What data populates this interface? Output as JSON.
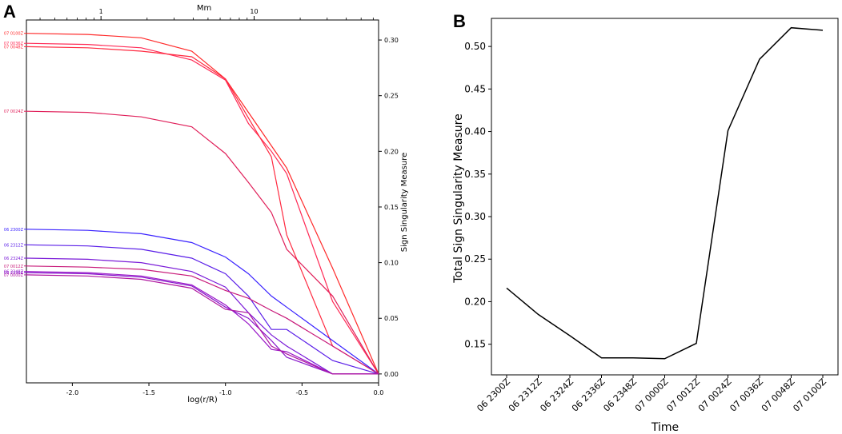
{
  "panel_labels": {
    "a": "A",
    "b": "B"
  },
  "chart_data": [
    {
      "type": "line",
      "panel": "A",
      "title": "",
      "xlabel": "log(r/R)",
      "ylabel": "Sign Singularity Measure",
      "secondary_xlabel": "Mm",
      "xlim": [
        -2.3,
        0.0
      ],
      "ylim": [
        -0.008,
        0.318
      ],
      "xticks": [
        -2.0,
        -1.5,
        -1.0,
        -0.5,
        0.0
      ],
      "xtick_labels": [
        "-2.0",
        "-1.5",
        "-1.0",
        "-0.5",
        "0.0"
      ],
      "yticks": [
        0.0,
        0.05,
        0.1,
        0.15,
        0.2,
        0.25,
        0.3
      ],
      "ytick_labels": [
        "0.00",
        "0.05",
        "0.10",
        "0.15",
        "0.20",
        "0.25",
        "0.30"
      ],
      "top_ticks": [
        1,
        10
      ],
      "top_tick_labels": [
        "1",
        "10"
      ],
      "y_axis_side": "right",
      "series_label_side": "left",
      "x": [
        -2.3,
        -1.9,
        -1.55,
        -1.22,
        -1.0,
        -0.85,
        -0.7,
        -0.6,
        -0.3,
        0.0
      ],
      "series": [
        {
          "name": "07 0100Z",
          "color": "#ff2a2a",
          "values": [
            0.306,
            0.305,
            0.302,
            0.29,
            0.265,
            0.235,
            0.205,
            0.185,
            0.095,
            0.0
          ]
        },
        {
          "name": "07 0036Z",
          "color": "#ff2a55",
          "values": [
            0.297,
            0.296,
            0.293,
            0.282,
            0.264,
            0.225,
            0.2,
            0.18,
            0.065,
            0.0
          ]
        },
        {
          "name": "07 0048Z",
          "color": "#ff2a40",
          "values": [
            0.294,
            0.293,
            0.29,
            0.285,
            0.265,
            0.23,
            0.195,
            0.125,
            0.025,
            0.0
          ]
        },
        {
          "name": "07 0024Z",
          "color": "#e0205a",
          "values": [
            0.236,
            0.235,
            0.231,
            0.222,
            0.198,
            0.172,
            0.145,
            0.112,
            0.07,
            0.0
          ]
        },
        {
          "name": "06 2300Z",
          "color": "#3a22ff",
          "values": [
            0.13,
            0.129,
            0.126,
            0.118,
            0.105,
            0.09,
            0.07,
            0.06,
            0.03,
            0.0
          ]
        },
        {
          "name": "06 2312Z",
          "color": "#5a1ee8",
          "values": [
            0.116,
            0.115,
            0.112,
            0.104,
            0.09,
            0.07,
            0.04,
            0.04,
            0.012,
            0.0
          ]
        },
        {
          "name": "06 2324Z",
          "color": "#7a1ad8",
          "values": [
            0.104,
            0.103,
            0.1,
            0.092,
            0.078,
            0.055,
            0.035,
            0.025,
            0.0,
            0.0
          ]
        },
        {
          "name": "07 0012Z",
          "color": "#c81a7a",
          "values": [
            0.097,
            0.096,
            0.094,
            0.088,
            0.075,
            0.068,
            0.057,
            0.05,
            0.025,
            0.0
          ]
        },
        {
          "name": "06 2348Z",
          "color": "#9a18c8",
          "values": [
            0.092,
            0.091,
            0.088,
            0.08,
            0.062,
            0.045,
            0.022,
            0.02,
            0.0,
            0.0
          ]
        },
        {
          "name": "06 2336Z",
          "color": "#8818cc",
          "values": [
            0.091,
            0.09,
            0.087,
            0.079,
            0.06,
            0.05,
            0.03,
            0.015,
            0.0,
            0.0
          ]
        },
        {
          "name": "07 0000Z",
          "color": "#b01aa0",
          "values": [
            0.089,
            0.088,
            0.085,
            0.077,
            0.058,
            0.055,
            0.025,
            0.018,
            0.0,
            0.0
          ]
        }
      ]
    },
    {
      "type": "line",
      "panel": "B",
      "title": "",
      "xlabel": "Time",
      "ylabel": "Total Sign Singularity Measure",
      "categories": [
        "06 2300Z",
        "06 2312Z",
        "06 2324Z",
        "06 2336Z",
        "06 2348Z",
        "07 0000Z",
        "07 0012Z",
        "07 0024Z",
        "07 0036Z",
        "07 0048Z",
        "07 0100Z"
      ],
      "values": [
        0.216,
        0.185,
        0.16,
        0.134,
        0.134,
        0.133,
        0.151,
        0.401,
        0.485,
        0.522,
        0.519
      ],
      "ylim": [
        0.114,
        0.533
      ],
      "yticks": [
        0.15,
        0.2,
        0.25,
        0.3,
        0.35,
        0.4,
        0.45,
        0.5
      ],
      "ytick_labels": [
        "0.15",
        "0.20",
        "0.25",
        "0.30",
        "0.35",
        "0.40",
        "0.45",
        "0.50"
      ],
      "line_color": "#000000"
    }
  ]
}
